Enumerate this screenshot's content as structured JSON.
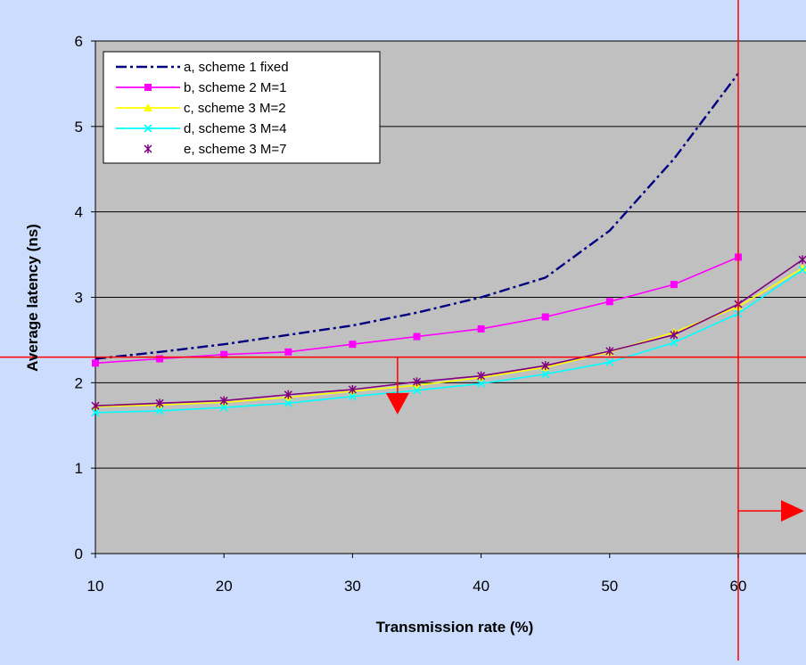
{
  "chart_data": {
    "type": "line",
    "title": "",
    "xlabel": "Transmission rate (%)",
    "ylabel": "Average latency (ns)",
    "xlim": [
      10,
      65
    ],
    "ylim": [
      0,
      6
    ],
    "x_ticks": [
      10,
      20,
      30,
      40,
      50,
      60
    ],
    "y_ticks": [
      0,
      1,
      2,
      3,
      4,
      5,
      6
    ],
    "grid": "horizontal",
    "legend_position": "top-left",
    "plot_background": "#c0c0c0",
    "series": [
      {
        "name": "a, scheme 1 fixed",
        "color": "#000080",
        "style": "dash-dot",
        "marker": "none",
        "x": [
          10,
          15,
          20,
          25,
          30,
          35,
          40,
          45,
          50,
          55,
          60
        ],
        "y": [
          2.28,
          2.36,
          2.45,
          2.56,
          2.67,
          2.82,
          3.0,
          3.23,
          3.78,
          4.62,
          5.62
        ]
      },
      {
        "name": "b, scheme 2 M=1",
        "color": "#ff00ff",
        "style": "solid",
        "marker": "square",
        "x": [
          10,
          15,
          20,
          25,
          30,
          35,
          40,
          45,
          50,
          55,
          60
        ],
        "y": [
          2.23,
          2.28,
          2.33,
          2.36,
          2.45,
          2.54,
          2.63,
          2.77,
          2.95,
          3.15,
          3.47
        ]
      },
      {
        "name": "c, scheme 3 M=2",
        "color": "#ffff00",
        "style": "solid",
        "marker": "triangle",
        "x": [
          10,
          15,
          20,
          25,
          30,
          35,
          40,
          45,
          50,
          55,
          60,
          65
        ],
        "y": [
          1.72,
          1.74,
          1.77,
          1.83,
          1.9,
          1.97,
          2.06,
          2.18,
          2.36,
          2.59,
          2.89,
          3.34
        ]
      },
      {
        "name": "d, scheme 3 M=4",
        "color": "#00ffff",
        "style": "solid",
        "marker": "x",
        "x": [
          10,
          15,
          20,
          25,
          30,
          35,
          40,
          45,
          50,
          55,
          60,
          65
        ],
        "y": [
          1.65,
          1.67,
          1.71,
          1.76,
          1.84,
          1.91,
          1.99,
          2.1,
          2.24,
          2.47,
          2.81,
          3.32
        ]
      },
      {
        "name": "e, scheme 3 M=7",
        "color": "#800080",
        "style": "solid",
        "marker": "star",
        "x": [
          10,
          15,
          20,
          25,
          30,
          35,
          40,
          45,
          50,
          55,
          60,
          65
        ],
        "y": [
          1.73,
          1.76,
          1.79,
          1.86,
          1.92,
          2.01,
          2.08,
          2.2,
          2.37,
          2.56,
          2.92,
          3.44
        ]
      }
    ],
    "annotations": {
      "color": "#ff0000",
      "hline_y": 2.3,
      "vline_x": 60,
      "down_arrow_x": 33.5,
      "down_arrow_y_from": 2.3,
      "down_arrow_y_to": 1.65,
      "right_arrow_y": 0.5,
      "right_arrow_x_from": 60,
      "right_arrow_x_to": 65
    }
  }
}
